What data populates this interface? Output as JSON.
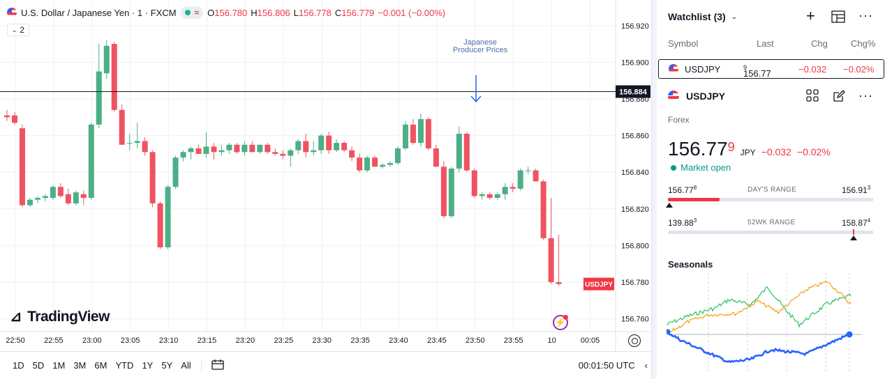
{
  "chart": {
    "title": "U.S. Dollar / Japanese Yen · 1 · FXCM",
    "badge_symbol": "≈",
    "ohlc": [
      {
        "k": "O",
        "v": "156.780"
      },
      {
        "k": "H",
        "v": "156.806"
      },
      {
        "k": "L",
        "v": "156.778"
      },
      {
        "k": "C",
        "v": "156.779"
      }
    ],
    "change": "−0.001 (−0.00%)",
    "collapse_count": "2",
    "event_label": "Japanese Producer Prices",
    "logo_text": "TradingView",
    "crosshair_price": "156.884",
    "symbol_tag": "USDJPY",
    "colors": {
      "up": "#4caf86",
      "down": "#ef5361",
      "grid": "#eef0f4",
      "tag": "#f23645"
    }
  },
  "chart_data": {
    "type": "candlestick",
    "y_ticks": [
      "156.920",
      "156.900",
      "156.880",
      "156.860",
      "156.840",
      "156.820",
      "156.800",
      "156.780",
      "156.760"
    ],
    "x_ticks": [
      "22:50",
      "22:55",
      "23:00",
      "23:05",
      "23:10",
      "23:15",
      "23:20",
      "23:25",
      "23:30",
      "23:35",
      "23:40",
      "23:45",
      "23:50",
      "23:55",
      "10",
      "00:05"
    ],
    "ylim": [
      156.753,
      156.934
    ],
    "interval_minutes": 1,
    "candles": [
      {
        "o": 156.871,
        "h": 156.874,
        "l": 156.868,
        "c": 156.87
      },
      {
        "o": 156.871,
        "h": 156.873,
        "l": 156.866,
        "c": 156.867
      },
      {
        "o": 156.864,
        "h": 156.866,
        "l": 156.821,
        "c": 156.822
      },
      {
        "o": 156.822,
        "h": 156.826,
        "l": 156.821,
        "c": 156.825
      },
      {
        "o": 156.825,
        "h": 156.827,
        "l": 156.823,
        "c": 156.826
      },
      {
        "o": 156.826,
        "h": 156.828,
        "l": 156.824,
        "c": 156.827
      },
      {
        "o": 156.826,
        "h": 156.833,
        "l": 156.825,
        "c": 156.832
      },
      {
        "o": 156.832,
        "h": 156.834,
        "l": 156.826,
        "c": 156.827
      },
      {
        "o": 156.828,
        "h": 156.831,
        "l": 156.822,
        "c": 156.823
      },
      {
        "o": 156.823,
        "h": 156.83,
        "l": 156.822,
        "c": 156.829
      },
      {
        "o": 156.828,
        "h": 156.83,
        "l": 156.822,
        "c": 156.826
      },
      {
        "o": 156.826,
        "h": 156.867,
        "l": 156.825,
        "c": 156.866
      },
      {
        "o": 156.866,
        "h": 156.91,
        "l": 156.864,
        "c": 156.895
      },
      {
        "o": 156.894,
        "h": 156.912,
        "l": 156.891,
        "c": 156.909
      },
      {
        "o": 156.91,
        "h": 156.911,
        "l": 156.873,
        "c": 156.874
      },
      {
        "o": 156.874,
        "h": 156.877,
        "l": 156.855,
        "c": 156.855
      },
      {
        "o": 156.856,
        "h": 156.861,
        "l": 156.852,
        "c": 156.856
      },
      {
        "o": 156.856,
        "h": 156.867,
        "l": 156.853,
        "c": 156.857
      },
      {
        "o": 156.857,
        "h": 156.859,
        "l": 156.849,
        "c": 156.851
      },
      {
        "o": 156.851,
        "h": 156.852,
        "l": 156.821,
        "c": 156.823
      },
      {
        "o": 156.823,
        "h": 156.824,
        "l": 156.798,
        "c": 156.799
      },
      {
        "o": 156.799,
        "h": 156.833,
        "l": 156.798,
        "c": 156.832
      },
      {
        "o": 156.832,
        "h": 156.849,
        "l": 156.831,
        "c": 156.848
      },
      {
        "o": 156.848,
        "h": 156.852,
        "l": 156.846,
        "c": 156.851
      },
      {
        "o": 156.851,
        "h": 156.854,
        "l": 156.847,
        "c": 156.853
      },
      {
        "o": 156.853,
        "h": 156.855,
        "l": 156.85,
        "c": 156.85
      },
      {
        "o": 156.85,
        "h": 156.862,
        "l": 156.848,
        "c": 156.854
      },
      {
        "o": 156.854,
        "h": 156.856,
        "l": 156.847,
        "c": 156.851
      },
      {
        "o": 156.851,
        "h": 156.855,
        "l": 156.849,
        "c": 156.852
      },
      {
        "o": 156.852,
        "h": 156.856,
        "l": 156.85,
        "c": 156.855
      },
      {
        "o": 156.855,
        "h": 156.856,
        "l": 156.85,
        "c": 156.851
      },
      {
        "o": 156.851,
        "h": 156.857,
        "l": 156.849,
        "c": 156.855
      },
      {
        "o": 156.855,
        "h": 156.857,
        "l": 156.851,
        "c": 156.851
      },
      {
        "o": 156.851,
        "h": 156.855,
        "l": 156.85,
        "c": 156.855
      },
      {
        "o": 156.855,
        "h": 156.856,
        "l": 156.85,
        "c": 156.851
      },
      {
        "o": 156.851,
        "h": 156.853,
        "l": 156.849,
        "c": 156.85
      },
      {
        "o": 156.85,
        "h": 156.852,
        "l": 156.847,
        "c": 156.849
      },
      {
        "o": 156.849,
        "h": 156.853,
        "l": 156.843,
        "c": 156.852
      },
      {
        "o": 156.852,
        "h": 156.858,
        "l": 156.85,
        "c": 156.857
      },
      {
        "o": 156.857,
        "h": 156.861,
        "l": 156.848,
        "c": 156.851
      },
      {
        "o": 156.851,
        "h": 156.857,
        "l": 156.849,
        "c": 156.852
      },
      {
        "o": 156.852,
        "h": 156.861,
        "l": 156.85,
        "c": 156.86
      },
      {
        "o": 156.86,
        "h": 156.862,
        "l": 156.85,
        "c": 156.852
      },
      {
        "o": 156.852,
        "h": 156.858,
        "l": 156.851,
        "c": 156.856
      },
      {
        "o": 156.856,
        "h": 156.857,
        "l": 156.851,
        "c": 156.852
      },
      {
        "o": 156.852,
        "h": 156.854,
        "l": 156.846,
        "c": 156.848
      },
      {
        "o": 156.848,
        "h": 156.85,
        "l": 156.84,
        "c": 156.841
      },
      {
        "o": 156.841,
        "h": 156.849,
        "l": 156.84,
        "c": 156.848
      },
      {
        "o": 156.848,
        "h": 156.849,
        "l": 156.843,
        "c": 156.843
      },
      {
        "o": 156.843,
        "h": 156.845,
        "l": 156.842,
        "c": 156.844
      },
      {
        "o": 156.844,
        "h": 156.846,
        "l": 156.843,
        "c": 156.845
      },
      {
        "o": 156.845,
        "h": 156.854,
        "l": 156.844,
        "c": 156.853
      },
      {
        "o": 156.853,
        "h": 156.868,
        "l": 156.852,
        "c": 156.866
      },
      {
        "o": 156.866,
        "h": 156.869,
        "l": 156.855,
        "c": 156.856
      },
      {
        "o": 156.856,
        "h": 156.872,
        "l": 156.854,
        "c": 156.869
      },
      {
        "o": 156.869,
        "h": 156.87,
        "l": 156.852,
        "c": 156.853
      },
      {
        "o": 156.853,
        "h": 156.855,
        "l": 156.843,
        "c": 156.843
      },
      {
        "o": 156.843,
        "h": 156.846,
        "l": 156.815,
        "c": 156.816
      },
      {
        "o": 156.816,
        "h": 156.843,
        "l": 156.815,
        "c": 156.842
      },
      {
        "o": 156.842,
        "h": 156.865,
        "l": 156.84,
        "c": 156.861
      },
      {
        "o": 156.861,
        "h": 156.862,
        "l": 156.84,
        "c": 156.841
      },
      {
        "o": 156.841,
        "h": 156.842,
        "l": 156.826,
        "c": 156.827
      },
      {
        "o": 156.827,
        "h": 156.829,
        "l": 156.825,
        "c": 156.828
      },
      {
        "o": 156.828,
        "h": 156.829,
        "l": 156.825,
        "c": 156.826
      },
      {
        "o": 156.826,
        "h": 156.829,
        "l": 156.825,
        "c": 156.828
      },
      {
        "o": 156.828,
        "h": 156.834,
        "l": 156.825,
        "c": 156.832
      },
      {
        "o": 156.832,
        "h": 156.834,
        "l": 156.829,
        "c": 156.831
      },
      {
        "o": 156.831,
        "h": 156.842,
        "l": 156.83,
        "c": 156.841
      },
      {
        "o": 156.841,
        "h": 156.843,
        "l": 156.839,
        "c": 156.841
      },
      {
        "o": 156.841,
        "h": 156.842,
        "l": 156.835,
        "c": 156.835
      },
      {
        "o": 156.835,
        "h": 156.836,
        "l": 156.803,
        "c": 156.804
      },
      {
        "o": 156.804,
        "h": 156.826,
        "l": 156.779,
        "c": 156.78
      },
      {
        "o": 156.78,
        "h": 156.806,
        "l": 156.778,
        "c": 156.779
      }
    ]
  },
  "bottom_bar": {
    "ranges": [
      "1D",
      "5D",
      "1M",
      "3M",
      "6M",
      "YTD",
      "1Y",
      "5Y",
      "All"
    ],
    "clock": "00:01:50 UTC"
  },
  "watchlist": {
    "title": "Watchlist (3)",
    "columns": {
      "symbol": "Symbol",
      "last": "Last",
      "chg": "Chg",
      "chgp": "Chg%"
    },
    "row": {
      "symbol": "USDJPY",
      "last_main": "156.77",
      "last_sup": "9",
      "chg": "−0.032",
      "chgp": "−0.02%"
    }
  },
  "details": {
    "symbol": "USDJPY",
    "type": "Forex",
    "price_main": "156.77",
    "price_sup": "9",
    "currency": "JPY",
    "change": "−0.032",
    "change_pct": "−0.02%",
    "market_status": "Market open",
    "days_range": {
      "label": "DAY'S RANGE",
      "low_main": "156.77",
      "low_sup": "8",
      "high_main": "156.91",
      "high_sup": "3",
      "fill": 0.25
    },
    "wk52_range": {
      "label": "52WK RANGE",
      "low_main": "139.88",
      "low_sup": "3",
      "high_main": "158.87",
      "high_sup": "4",
      "marker": 0.9
    }
  },
  "seasonals": {
    "title": "Seasonals",
    "colors": {
      "green": "#22c55e",
      "orange": "#f59e0b",
      "blue": "#2962ff"
    }
  }
}
